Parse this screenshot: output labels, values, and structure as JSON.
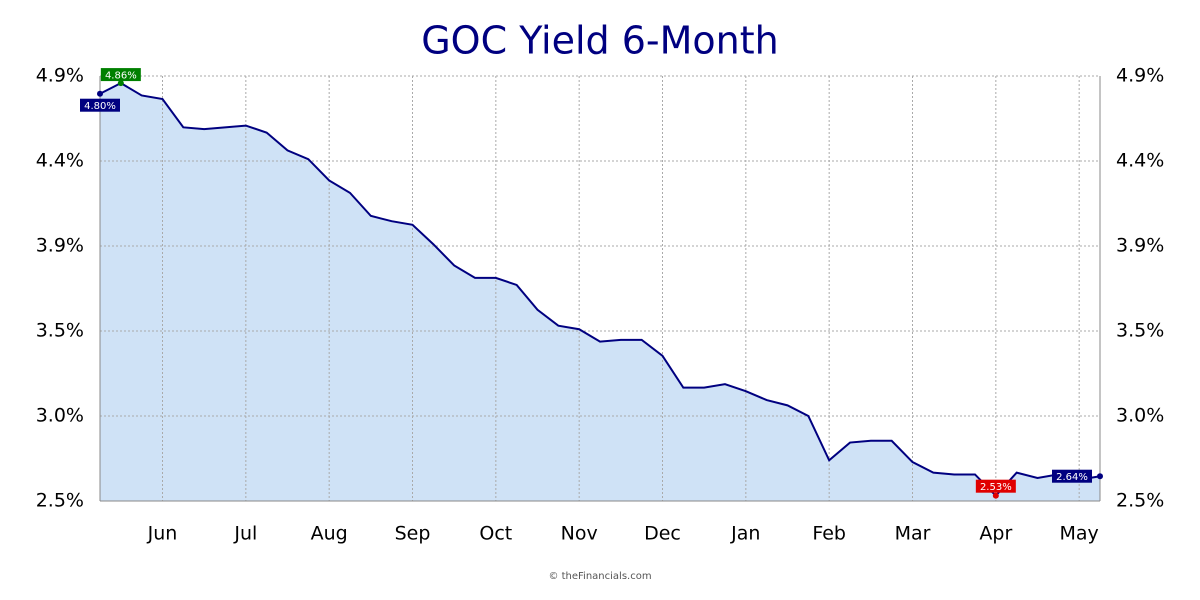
{
  "chart_data": {
    "type": "area",
    "title": "GOC Yield 6-Month",
    "footer": "© theFinancials.com",
    "categories": [
      null,
      null,
      null,
      "Jun",
      null,
      null,
      null,
      "Jul",
      null,
      null,
      null,
      "Aug",
      null,
      null,
      null,
      "Sep",
      null,
      null,
      null,
      "Oct",
      null,
      null,
      null,
      "Nov",
      null,
      null,
      null,
      "Dec",
      null,
      null,
      null,
      "Jan",
      null,
      null,
      null,
      "Feb",
      null,
      null,
      null,
      "Mar",
      null,
      null,
      null,
      "Apr",
      null,
      null,
      null,
      "May",
      null
    ],
    "values": [
      4.8,
      4.86,
      4.79,
      4.77,
      4.61,
      4.6,
      4.61,
      4.62,
      4.58,
      4.48,
      4.43,
      4.31,
      4.24,
      4.11,
      4.08,
      4.06,
      3.95,
      3.83,
      3.76,
      3.76,
      3.72,
      3.58,
      3.49,
      3.47,
      3.4,
      3.41,
      3.41,
      3.32,
      3.14,
      3.14,
      3.16,
      3.12,
      3.07,
      3.04,
      2.98,
      2.73,
      2.83,
      2.84,
      2.84,
      2.72,
      2.66,
      2.65,
      2.65,
      2.53,
      2.66,
      2.63,
      2.65,
      2.62,
      2.64
    ],
    "value_labels": [
      "4.80%",
      "4.86%",
      null,
      null,
      null,
      null,
      null,
      null,
      null,
      null,
      null,
      null,
      null,
      null,
      null,
      null,
      null,
      null,
      null,
      null,
      null,
      null,
      null,
      null,
      null,
      null,
      null,
      null,
      null,
      null,
      null,
      null,
      null,
      null,
      null,
      null,
      null,
      null,
      null,
      null,
      null,
      null,
      null,
      "2.53%",
      null,
      null,
      null,
      null,
      "2.64%"
    ],
    "value_label_colors": [
      "#000080",
      "#008000",
      null,
      null,
      null,
      null,
      null,
      null,
      null,
      null,
      null,
      null,
      null,
      null,
      null,
      null,
      null,
      null,
      null,
      null,
      null,
      null,
      null,
      null,
      null,
      null,
      null,
      null,
      null,
      null,
      null,
      null,
      null,
      null,
      null,
      null,
      null,
      null,
      null,
      null,
      null,
      null,
      null,
      "#e00000",
      null,
      null,
      null,
      null,
      "#000080"
    ],
    "color": "#000080",
    "fill": "#cce0f5",
    "ylim": [
      2.5,
      4.9
    ],
    "yticks": [
      {
        "value": 2.5,
        "label": "2.5%"
      },
      {
        "value": 2.98,
        "label": "3.0%"
      },
      {
        "value": 3.46,
        "label": "3.5%"
      },
      {
        "value": 3.94,
        "label": "3.9%"
      },
      {
        "value": 4.42,
        "label": "4.4%"
      },
      {
        "value": 4.9,
        "label": "4.9%"
      }
    ],
    "grid": true,
    "right_axis": true
  }
}
